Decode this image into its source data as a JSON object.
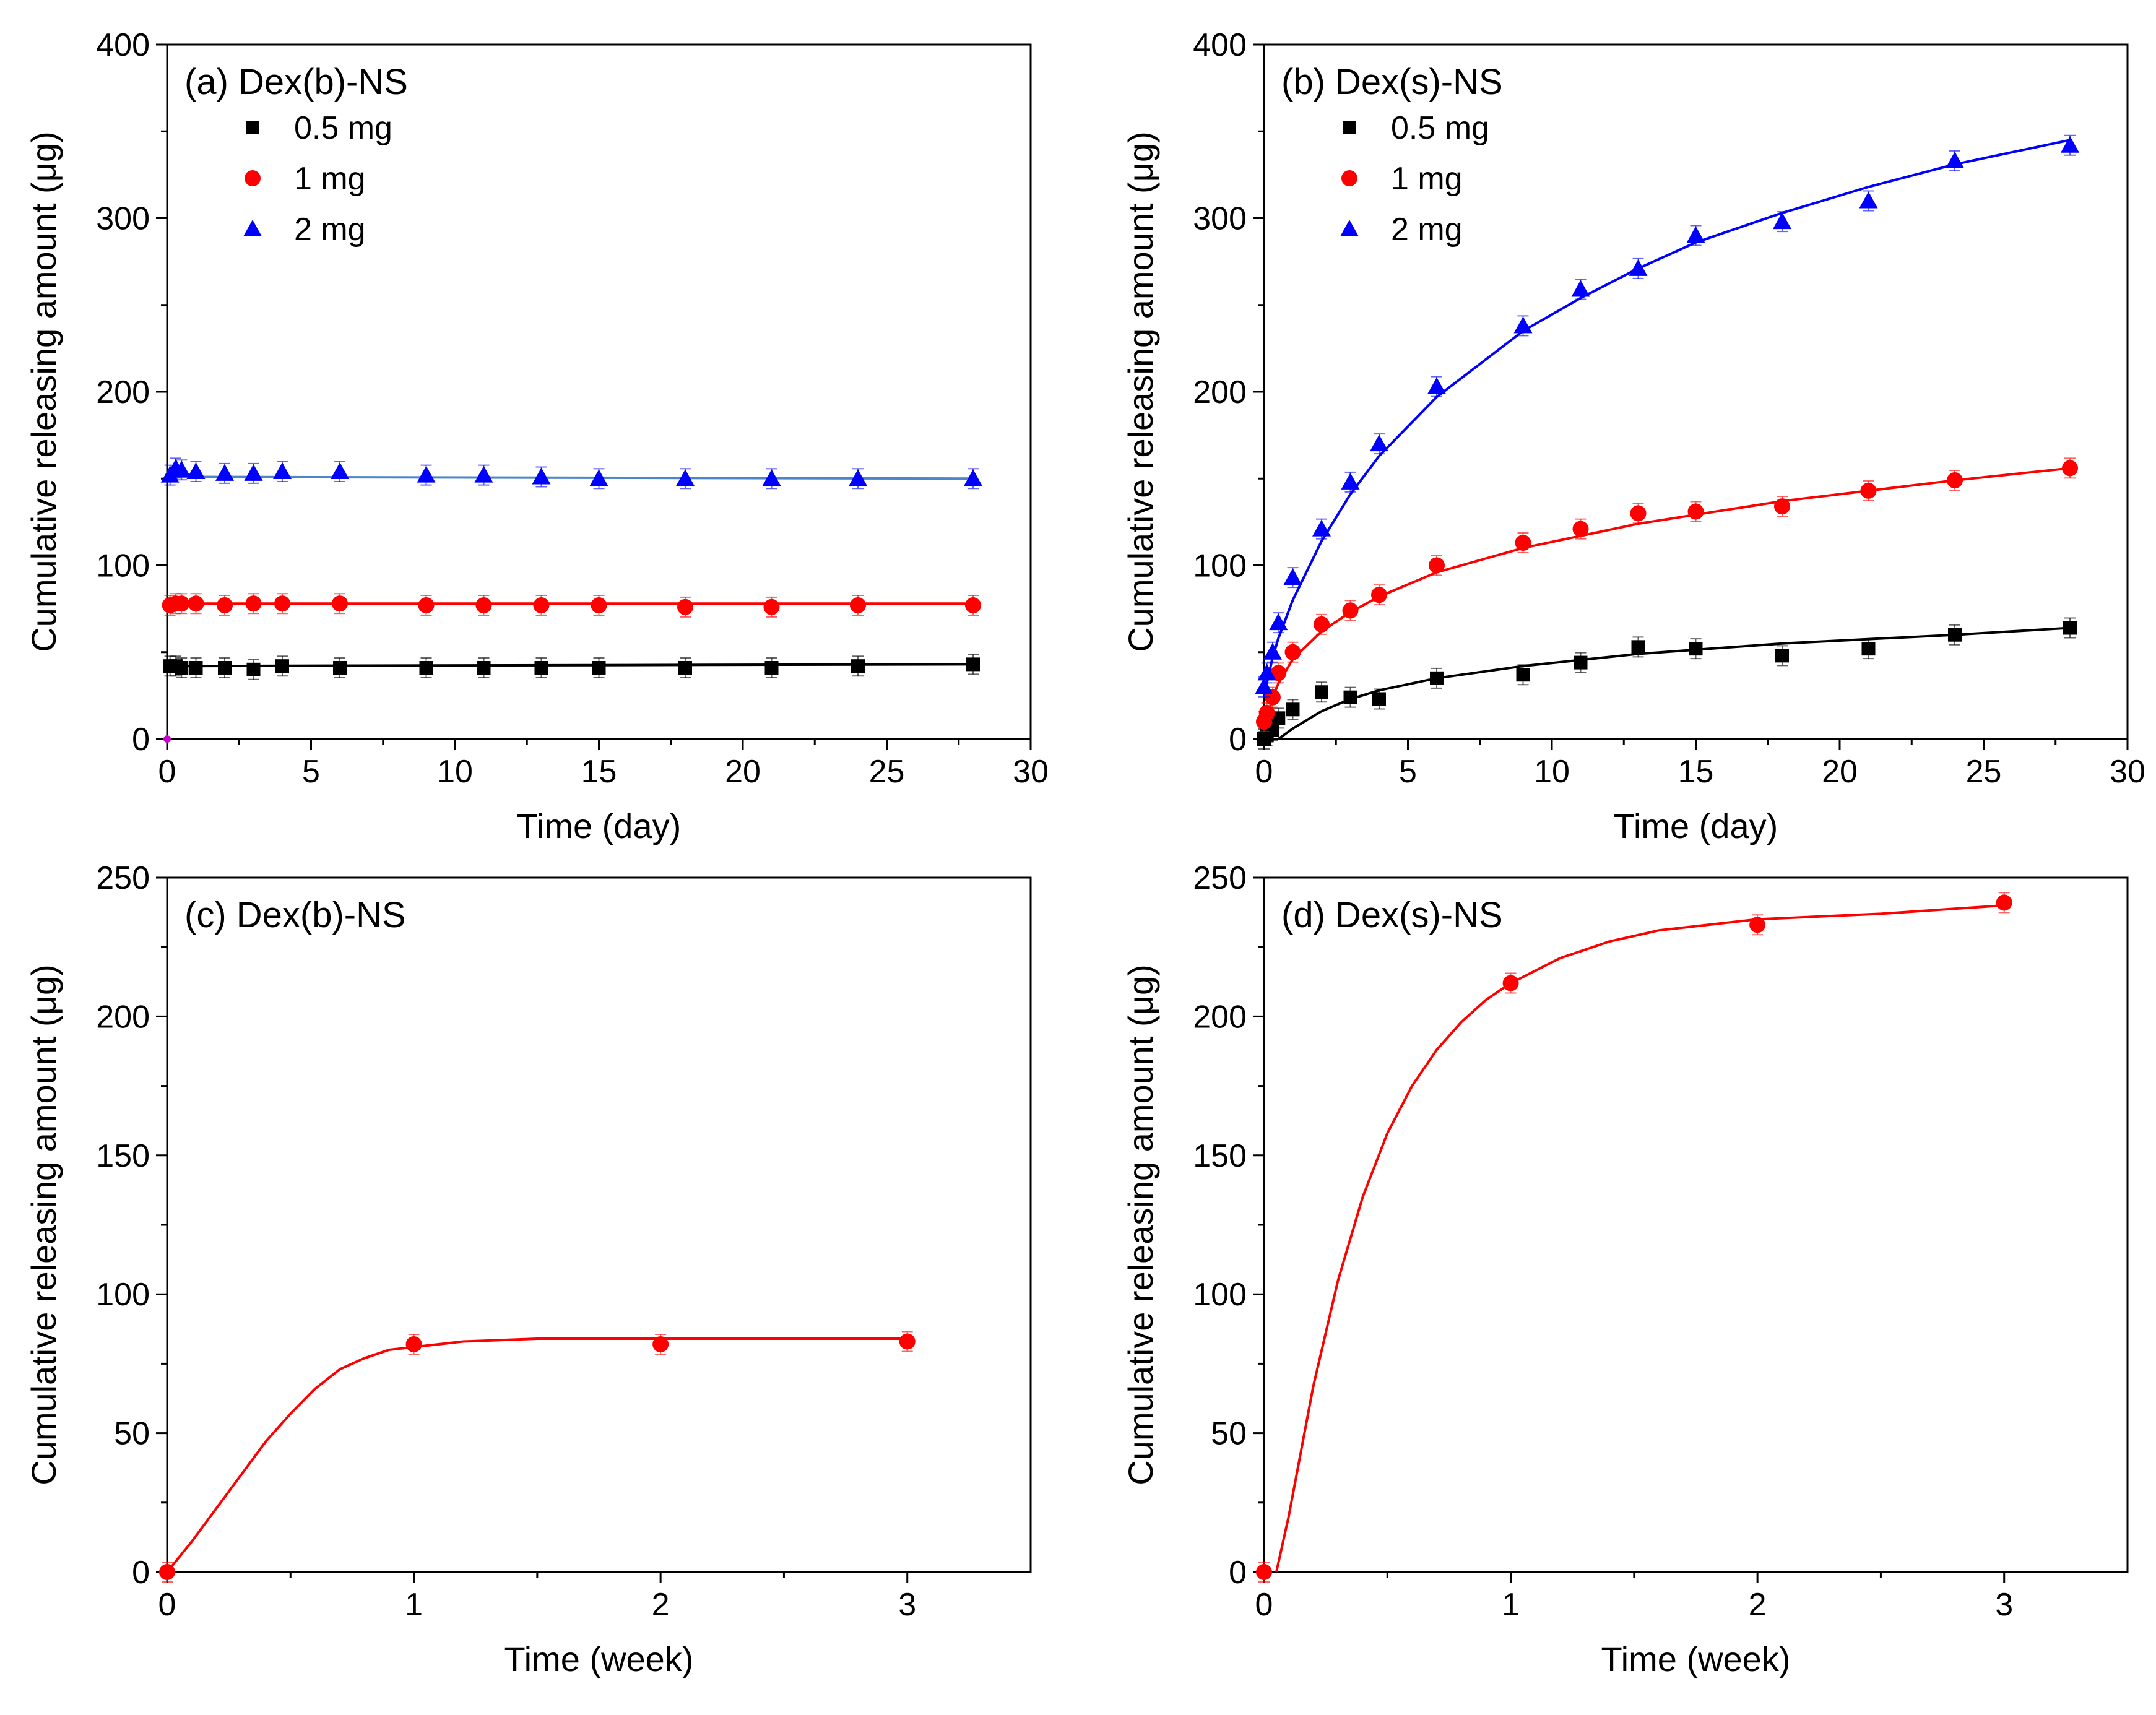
{
  "chart_data": [
    {
      "panel": "a",
      "type": "scatter",
      "title": "(a) Dex(b)-NS",
      "xlabel": "Time (day)",
      "ylabel": "Cumulative releasing amount (μg)",
      "xlim": [
        0,
        30
      ],
      "ylim": [
        0,
        400
      ],
      "xticks": [
        0,
        5,
        10,
        15,
        20,
        25,
        30
      ],
      "yticks": [
        0,
        100,
        200,
        300,
        400
      ],
      "xtick_labels": [
        "0",
        "5",
        "10",
        "15",
        "20",
        "25",
        "30"
      ],
      "ytick_labels": [
        "0",
        "100",
        "200",
        "300",
        "400"
      ],
      "legend_position": "top-left",
      "series": [
        {
          "name": "0.5 mg",
          "color": "#000000",
          "marker": "square",
          "fit_color": "#000000",
          "x": [
            0.1,
            0.3,
            0.5,
            1,
            2,
            3,
            4,
            6,
            9,
            11,
            13,
            15,
            18,
            21,
            24,
            28
          ],
          "y": [
            42,
            42,
            41,
            41,
            41,
            40,
            42,
            41,
            41,
            41,
            41,
            41,
            41,
            41,
            42,
            43
          ],
          "fit": [
            [
              0,
              42
            ],
            [
              28,
              43
            ]
          ]
        },
        {
          "name": "1 mg",
          "color": "#ff0000",
          "marker": "circle",
          "fit_color": "#ff0000",
          "x": [
            0.1,
            0.3,
            0.5,
            1,
            2,
            3,
            4,
            6,
            9,
            11,
            13,
            15,
            18,
            21,
            24,
            28
          ],
          "y": [
            77,
            78,
            78,
            78,
            77,
            78,
            78,
            78,
            77,
            77,
            77,
            77,
            76,
            76,
            77,
            77
          ],
          "fit": [
            [
              0,
              78
            ],
            [
              28,
              78
            ]
          ]
        },
        {
          "name": "2 mg",
          "color": "#0000ff",
          "marker": "triangle",
          "fit_color": "#4a86c8",
          "x": [
            0.1,
            0.3,
            0.5,
            1,
            2,
            3,
            4,
            6,
            9,
            11,
            13,
            15,
            18,
            21,
            24,
            28
          ],
          "y": [
            152,
            156,
            155,
            154,
            153,
            153,
            154,
            154,
            152,
            152,
            151,
            150,
            150,
            150,
            150,
            150
          ],
          "fit": [
            [
              0,
              151
            ],
            [
              28,
              150
            ]
          ]
        }
      ],
      "extra_points": [
        {
          "x": 0,
          "y": 0,
          "color": "#cc00cc"
        }
      ]
    },
    {
      "panel": "b",
      "type": "scatter",
      "title": "(b) Dex(s)-NS",
      "xlabel": "Time (day)",
      "ylabel": "Cumulative releasing amount (μg)",
      "xlim": [
        0,
        30
      ],
      "ylim": [
        0,
        400
      ],
      "xticks": [
        0,
        5,
        10,
        15,
        20,
        25,
        30
      ],
      "yticks": [
        0,
        100,
        200,
        300,
        400
      ],
      "xtick_labels": [
        "0",
        "5",
        "10",
        "15",
        "20",
        "25",
        "30"
      ],
      "ytick_labels": [
        "0",
        "100",
        "200",
        "300",
        "400"
      ],
      "legend_position": "top-left",
      "series": [
        {
          "name": "0.5 mg",
          "color": "#000000",
          "marker": "square",
          "fit_color": "#000000",
          "x": [
            0,
            0.1,
            0.3,
            0.5,
            1,
            2,
            3,
            4,
            6,
            9,
            11,
            13,
            15,
            18,
            21,
            24,
            28
          ],
          "y": [
            0,
            2,
            5,
            12,
            17,
            27,
            24,
            23,
            35,
            37,
            44,
            53,
            52,
            48,
            52,
            60,
            64
          ],
          "fit": [
            [
              0.5,
              0
            ],
            [
              1,
              6
            ],
            [
              2,
              16
            ],
            [
              3,
              23
            ],
            [
              4,
              28
            ],
            [
              6,
              35
            ],
            [
              9,
              42
            ],
            [
              13,
              49
            ],
            [
              18,
              55
            ],
            [
              24,
              60
            ],
            [
              28,
              64
            ]
          ]
        },
        {
          "name": "1 mg",
          "color": "#ff0000",
          "marker": "circle",
          "fit_color": "#ff0000",
          "x": [
            0,
            0.1,
            0.3,
            0.5,
            1,
            2,
            3,
            4,
            6,
            9,
            11,
            13,
            15,
            18,
            21,
            24,
            28
          ],
          "y": [
            10,
            15,
            24,
            38,
            50,
            66,
            74,
            83,
            100,
            113,
            121,
            130,
            131,
            134,
            143,
            149,
            156
          ],
          "fit": [
            [
              0,
              5
            ],
            [
              0.3,
              24
            ],
            [
              0.5,
              32
            ],
            [
              1,
              46
            ],
            [
              2,
              62
            ],
            [
              3,
              73
            ],
            [
              4,
              82
            ],
            [
              6,
              96
            ],
            [
              9,
              110
            ],
            [
              13,
              124
            ],
            [
              18,
              137
            ],
            [
              24,
              149
            ],
            [
              28,
              156
            ]
          ]
        },
        {
          "name": "2 mg",
          "color": "#0000ff",
          "marker": "triangle",
          "fit_color": "#0000ff",
          "x": [
            0,
            0.1,
            0.3,
            0.5,
            1,
            2,
            3,
            4,
            6,
            9,
            11,
            13,
            15,
            18,
            21,
            24,
            28
          ],
          "y": [
            30,
            38,
            50,
            67,
            93,
            121,
            148,
            170,
            203,
            238,
            259,
            271,
            290,
            298,
            310,
            333,
            342
          ],
          "fit": [
            [
              0,
              25
            ],
            [
              0.3,
              47
            ],
            [
              0.5,
              58
            ],
            [
              1,
              80
            ],
            [
              2,
              114
            ],
            [
              3,
              141
            ],
            [
              4,
              163
            ],
            [
              6,
              197
            ],
            [
              9,
              235
            ],
            [
              11,
              254
            ],
            [
              13,
              271
            ],
            [
              15,
              286
            ],
            [
              18,
              303
            ],
            [
              21,
              318
            ],
            [
              24,
              331
            ],
            [
              28,
              345
            ]
          ]
        }
      ]
    },
    {
      "panel": "c",
      "type": "scatter",
      "title": "(c) Dex(b)-NS",
      "xlabel": "Time (week)",
      "ylabel": "Cumulative releasing amount (μg)",
      "xlim": [
        0,
        3.5
      ],
      "ylim": [
        0,
        250
      ],
      "xticks": [
        0,
        1,
        2,
        3
      ],
      "yticks": [
        0,
        50,
        100,
        150,
        200,
        250
      ],
      "xtick_labels": [
        "0",
        "1",
        "2",
        "3"
      ],
      "ytick_labels": [
        "0",
        "50",
        "100",
        "150",
        "200",
        "250"
      ],
      "series": [
        {
          "name": "Dex(b)-NS",
          "color": "#ff0000",
          "marker": "circle",
          "fit_color": "#ff0000",
          "x": [
            0,
            1,
            2,
            3
          ],
          "y": [
            0,
            82,
            82,
            83
          ],
          "fit": [
            [
              0,
              0
            ],
            [
              0.1,
              11
            ],
            [
              0.2,
              23
            ],
            [
              0.3,
              35
            ],
            [
              0.4,
              47
            ],
            [
              0.5,
              57
            ],
            [
              0.6,
              66
            ],
            [
              0.7,
              73
            ],
            [
              0.8,
              77
            ],
            [
              0.9,
              80
            ],
            [
              1.0,
              81
            ],
            [
              1.2,
              83
            ],
            [
              1.5,
              84
            ],
            [
              2,
              84
            ],
            [
              3,
              84
            ]
          ]
        }
      ]
    },
    {
      "panel": "d",
      "type": "scatter",
      "title": "(d) Dex(s)-NS",
      "xlabel": "Time (week)",
      "ylabel": "Cumulative releasing amount (μg)",
      "xlim": [
        0,
        3.5
      ],
      "ylim": [
        0,
        250
      ],
      "xticks": [
        0,
        1,
        2,
        3
      ],
      "yticks": [
        0,
        50,
        100,
        150,
        200,
        250
      ],
      "xtick_labels": [
        "0",
        "1",
        "2",
        "3"
      ],
      "ytick_labels": [
        "0",
        "50",
        "100",
        "150",
        "200",
        "250"
      ],
      "series": [
        {
          "name": "Dex(s)-NS",
          "color": "#ff0000",
          "marker": "circle",
          "fit_color": "#ff0000",
          "x": [
            0,
            1,
            2,
            3
          ],
          "y": [
            0,
            212,
            233,
            241
          ],
          "fit": [
            [
              0.05,
              0
            ],
            [
              0.1,
              20
            ],
            [
              0.2,
              67
            ],
            [
              0.3,
              105
            ],
            [
              0.4,
              135
            ],
            [
              0.5,
              158
            ],
            [
              0.6,
              175
            ],
            [
              0.7,
              188
            ],
            [
              0.8,
              198
            ],
            [
              0.9,
              206
            ],
            [
              1.0,
              212
            ],
            [
              1.2,
              221
            ],
            [
              1.4,
              227
            ],
            [
              1.6,
              231
            ],
            [
              1.8,
              233
            ],
            [
              2.0,
              235
            ],
            [
              2.5,
              237
            ],
            [
              3.0,
              240
            ]
          ]
        }
      ]
    }
  ]
}
